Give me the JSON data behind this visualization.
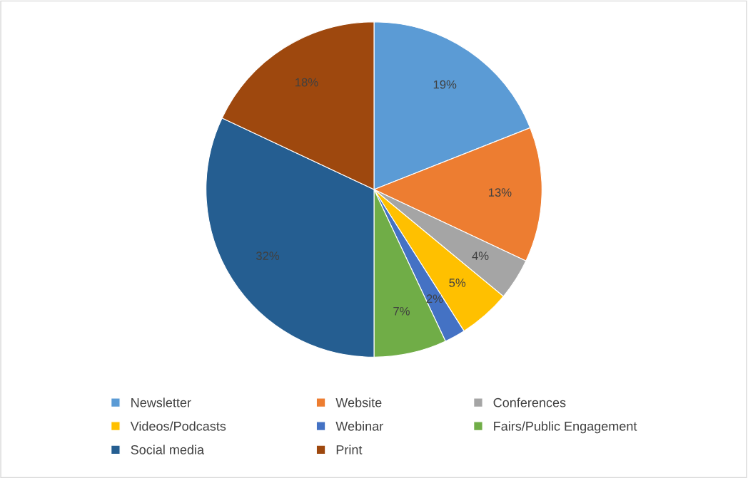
{
  "chart_data": {
    "type": "pie",
    "categories": [
      "Newsletter",
      "Website",
      "Conferences",
      "Videos/Podcasts",
      "Webinar",
      "Fairs/Public Engagement",
      "Social media",
      "Print"
    ],
    "values": [
      19,
      13,
      4,
      5,
      2,
      7,
      32,
      18
    ],
    "value_labels": [
      "19%",
      "13%",
      "4%",
      "5%",
      "2%",
      "7%",
      "32%",
      "18%"
    ],
    "colors": [
      "#5b9bd5",
      "#ed7d31",
      "#a5a5a5",
      "#ffc000",
      "#4472c4",
      "#70ad47",
      "#255e91",
      "#9e480e"
    ],
    "legend": "bottom"
  }
}
